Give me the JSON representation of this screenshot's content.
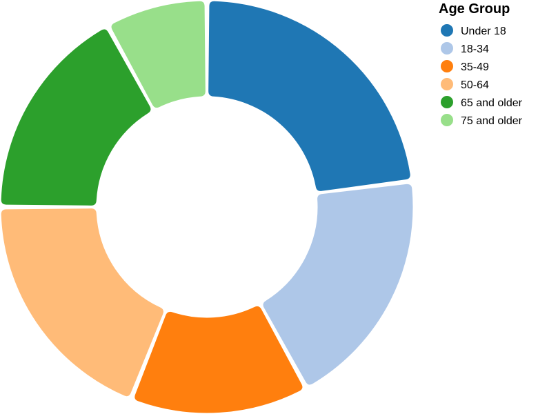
{
  "chart_data": {
    "type": "pie",
    "donut": true,
    "legend": {
      "title": "Age Group",
      "placement": "top-right"
    },
    "categories": [
      "Under 18",
      "18-34",
      "35-49",
      "50-64",
      "65 and older",
      "75 and older"
    ],
    "values": [
      23,
      19,
      14,
      19,
      17,
      8
    ],
    "colors": [
      "#1f77b4",
      "#aec7e8",
      "#ff7f0e",
      "#ffbb78",
      "#2ca02c",
      "#98df8a"
    ]
  }
}
